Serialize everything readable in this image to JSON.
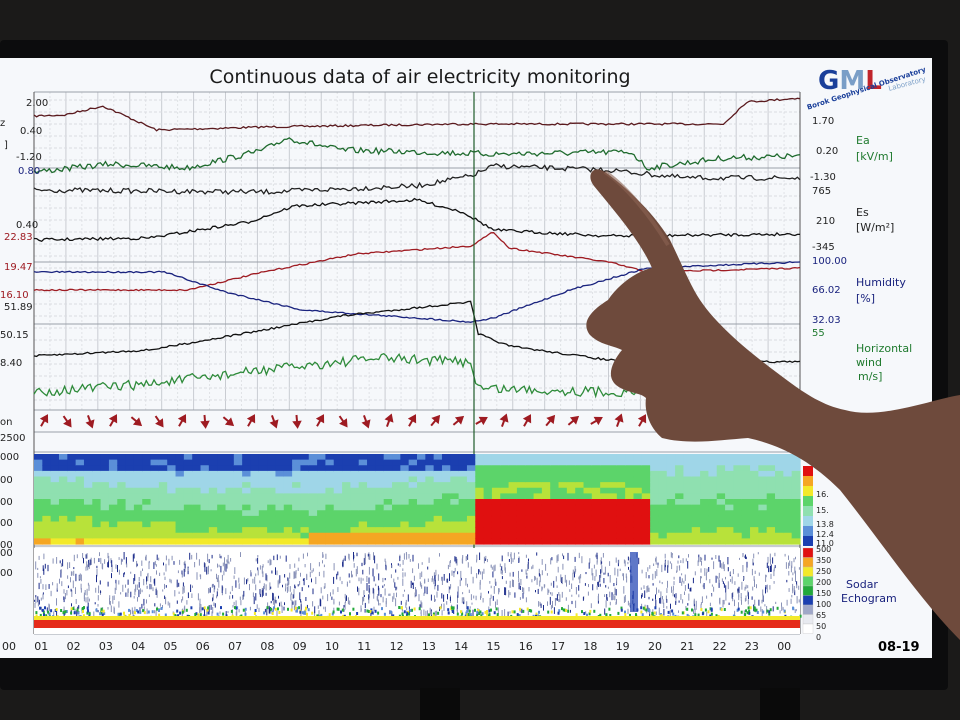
{
  "title": "Continuous data of air electricity monitoring",
  "logo": {
    "g": "G",
    "m": "M",
    "l": "L",
    "lab": "Laboratory",
    "subtitle": "Borok Geophysical Observatory"
  },
  "date_label": "08-19",
  "colors": {
    "screen": "#f6f8fb",
    "black_trace": "#111111",
    "green_trace": "#1f7a2e",
    "red_trace": "#9e1b22",
    "blue_trace": "#1a237e",
    "hand": "#7a5646"
  },
  "left_ticks": [
    {
      "text": "2.00",
      "color": "#222"
    },
    {
      "text": "z",
      "color": "#222"
    },
    {
      "text": "0.40",
      "color": "#222"
    },
    {
      "text": "]",
      "color": "#222"
    },
    {
      "text": "-1.20",
      "color": "#222"
    },
    {
      "text": "0.80",
      "color": "#1a237e"
    },
    {
      "text": "0.40",
      "color": "#222"
    },
    {
      "text": "22.83",
      "color": "#9e1b22"
    },
    {
      "text": "19.47",
      "color": "#9e1b22"
    },
    {
      "text": "16.10",
      "color": "#9e1b22"
    },
    {
      "text": "51.89",
      "color": "#222"
    },
    {
      "text": "50.15",
      "color": "#222"
    },
    {
      "text": "8.40",
      "color": "#222"
    },
    {
      "text": "on",
      "color": "#222"
    },
    {
      "text": "2500",
      "color": "#222"
    },
    {
      "text": "000",
      "color": "#222"
    },
    {
      "text": "00",
      "color": "#222"
    },
    {
      "text": "00",
      "color": "#222"
    },
    {
      "text": "00",
      "color": "#222"
    },
    {
      "text": "00",
      "color": "#222"
    },
    {
      "text": "00",
      "color": "#222"
    },
    {
      "text": "00",
      "color": "#222"
    }
  ],
  "right_ticks": [
    {
      "text": "1.70",
      "color": "#222"
    },
    {
      "text": "0.20",
      "color": "#222"
    },
    {
      "text": "-1.30",
      "color": "#222"
    },
    {
      "text": "765",
      "color": "#222"
    },
    {
      "text": "210",
      "color": "#222"
    },
    {
      "text": "-345",
      "color": "#222"
    },
    {
      "text": "100.00",
      "color": "#1a237e"
    },
    {
      "text": "66.02",
      "color": "#1a237e"
    },
    {
      "text": "32.03",
      "color": "#1a237e"
    },
    {
      "text": "55",
      "color": "#1f7a2e"
    }
  ],
  "right_labels": [
    {
      "text": "Ea",
      "color": "#1f7a2e"
    },
    {
      "text": "[kV/m]",
      "color": "#1f7a2e"
    },
    {
      "text": "Es",
      "color": "#222"
    },
    {
      "text": "[W/m²]",
      "color": "#222"
    },
    {
      "text": "Humidity",
      "color": "#1a237e"
    },
    {
      "text": "[%]",
      "color": "#1a237e"
    },
    {
      "text": "Horizontal",
      "color": "#1f7a2e"
    },
    {
      "text": "wind",
      "color": "#1f7a2e"
    },
    {
      "text": "m/s]",
      "color": "#1f7a2e"
    },
    {
      "text": "Sodar",
      "color": "#1a237e"
    },
    {
      "text": "Echogram",
      "color": "#1a237e"
    }
  ],
  "temp_scale": [
    "16.",
    "15.",
    "13.8",
    "12.4",
    "11.0"
  ],
  "sodar_scale": [
    "500",
    "350",
    "250",
    "200",
    "150",
    "100",
    "65",
    "50",
    "0"
  ],
  "hours": [
    "00",
    "01",
    "02",
    "03",
    "04",
    "05",
    "06",
    "07",
    "08",
    "09",
    "10",
    "11",
    "12",
    "13",
    "14",
    "15",
    "16",
    "17",
    "18",
    "19",
    "20",
    "21",
    "22",
    "23",
    "00"
  ]
}
